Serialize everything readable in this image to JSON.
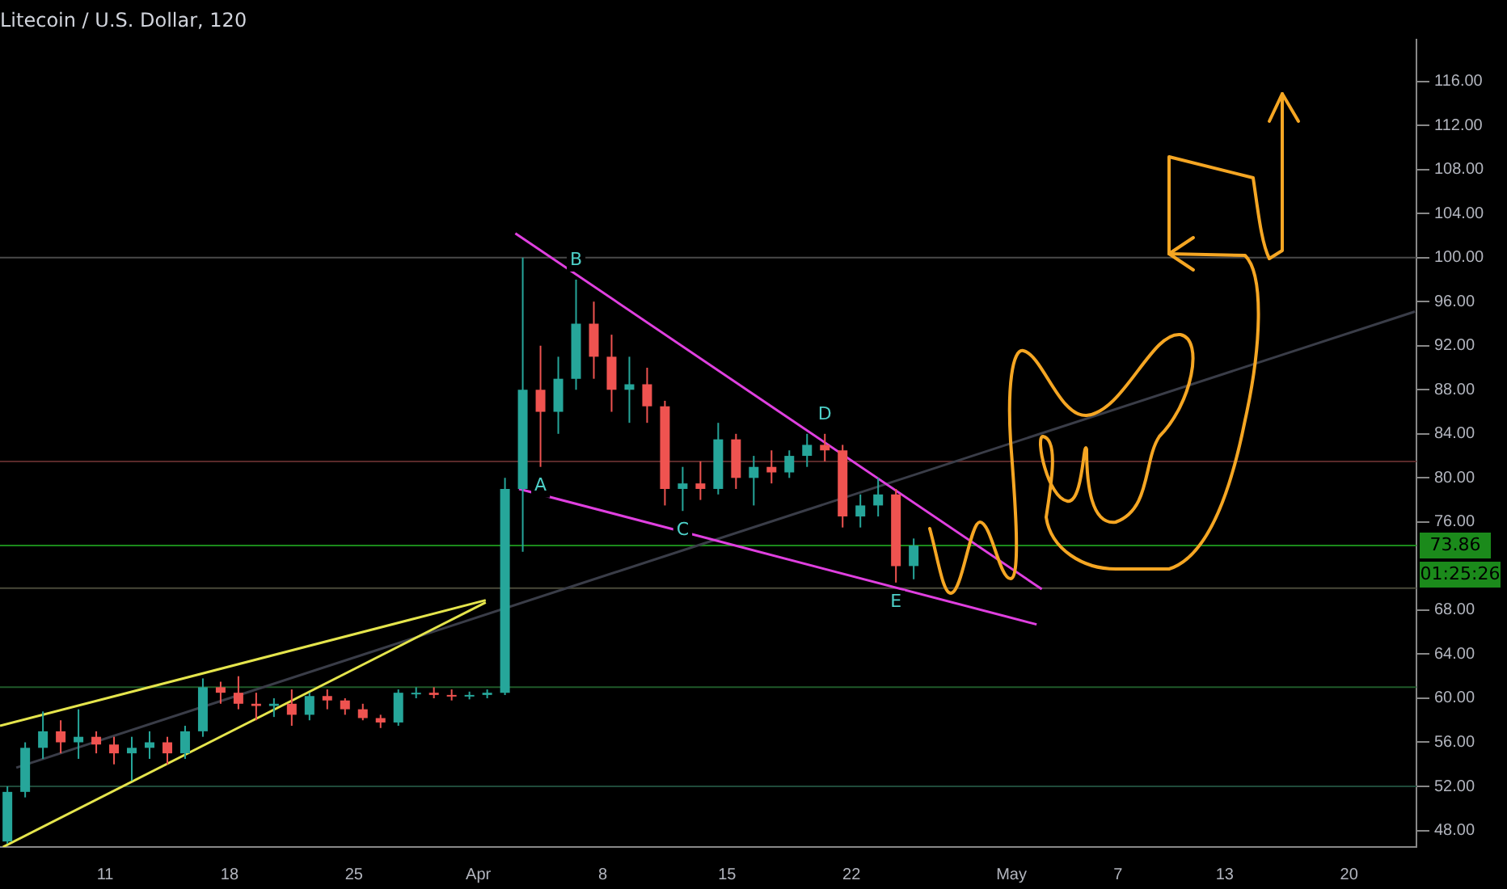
{
  "chart_data": {
    "type": "candlestick",
    "title": "Litecoin / U.S. Dollar, 120",
    "x": [
      "--03-05T12:00",
      "--03-06T12:00",
      "--03-07T12:00",
      "--03-08T12:00",
      "--03-09T12:00",
      "--03-10T12:00",
      "--03-11T12:00",
      "--03-12T12:00",
      "--03-13T12:00",
      "--03-14T12:00",
      "--03-15T12:00",
      "--03-16T12:00",
      "--03-17T12:00",
      "--03-18T12:00",
      "--03-19T12:00",
      "--03-20T12:00",
      "--03-21T12:00",
      "--03-22T12:00",
      "--03-23T12:00",
      "--03-24T12:00",
      "--03-25T12:00",
      "--03-26T12:00",
      "--03-27T12:00",
      "--03-28T12:00",
      "--03-29T12:00",
      "--03-30T12:00",
      "--03-31T12:00",
      "--04-01T12:00",
      "--04-02T12:00",
      "--04-03T12:00",
      "--04-04T12:00",
      "--04-05T12:00",
      "--04-06T12:00",
      "--04-07T12:00",
      "--04-08T12:00",
      "--04-09T12:00",
      "--04-10T12:00",
      "--04-11T12:00",
      "--04-12T12:00",
      "--04-13T12:00",
      "--04-14T12:00",
      "--04-15T12:00",
      "--04-16T12:00",
      "--04-17T12:00",
      "--04-18T12:00",
      "--04-19T12:00",
      "--04-20T12:00",
      "--04-21T12:00",
      "--04-22T12:00",
      "--04-23T12:00",
      "--04-24T12:00",
      "--04-25T12:00"
    ],
    "ohlc": [
      [
        47,
        52,
        46.8,
        51.5
      ],
      [
        51.5,
        56,
        51,
        55.5
      ],
      [
        55.5,
        58.8,
        54.5,
        57
      ],
      [
        57,
        58,
        55,
        56
      ],
      [
        56,
        59,
        54.5,
        56.5
      ],
      [
        56.5,
        57,
        55,
        55.8
      ],
      [
        55.8,
        56.5,
        54,
        55
      ],
      [
        55,
        56.5,
        52.5,
        55.5
      ],
      [
        55.5,
        57,
        54.5,
        56
      ],
      [
        56,
        56.5,
        54,
        55
      ],
      [
        55,
        57.5,
        54.5,
        57
      ],
      [
        57,
        61.8,
        56.5,
        61
      ],
      [
        61,
        61.5,
        59.5,
        60.5
      ],
      [
        60.5,
        62,
        59,
        59.5
      ],
      [
        59.5,
        60.5,
        58,
        59.3
      ],
      [
        59.3,
        60,
        58.3,
        59.5
      ],
      [
        59.5,
        60.8,
        57.5,
        58.5
      ],
      [
        58.5,
        60.5,
        58,
        60.2
      ],
      [
        60.2,
        60.8,
        59,
        59.8
      ],
      [
        59.8,
        60,
        58.5,
        59
      ],
      [
        59,
        59.5,
        58,
        58.2
      ],
      [
        58.2,
        58.5,
        57.3,
        57.8
      ],
      [
        57.8,
        60.8,
        57.5,
        60.5
      ],
      [
        60.5,
        61,
        60,
        60.5
      ],
      [
        60.5,
        61,
        60,
        60.3
      ],
      [
        60.3,
        60.8,
        59.8,
        60.2
      ],
      [
        60.2,
        60.6,
        59.9,
        60.3
      ],
      [
        60.3,
        60.8,
        60,
        60.5
      ],
      [
        60.5,
        80,
        60.3,
        79
      ],
      [
        79,
        100,
        73.3,
        88
      ],
      [
        88,
        92,
        81,
        86
      ],
      [
        86,
        91,
        84,
        89
      ],
      [
        89,
        98,
        88,
        94
      ],
      [
        94,
        96,
        89,
        91
      ],
      [
        91,
        93,
        86,
        88
      ],
      [
        88,
        91,
        85,
        88.5
      ],
      [
        88.5,
        90,
        85,
        86.5
      ],
      [
        86.5,
        87,
        77.5,
        79
      ],
      [
        79,
        81,
        77,
        79.5
      ],
      [
        79.5,
        81.5,
        78,
        79
      ],
      [
        79,
        85,
        78.5,
        83.5
      ],
      [
        83.5,
        84,
        79,
        80
      ],
      [
        80,
        82,
        77.5,
        81
      ],
      [
        81,
        82.5,
        79.5,
        80.5
      ],
      [
        80.5,
        82.5,
        80,
        82
      ],
      [
        82,
        84,
        81,
        83
      ],
      [
        83,
        84,
        81.5,
        82.5
      ],
      [
        82.5,
        83,
        75.5,
        76.5
      ],
      [
        76.5,
        78.5,
        75.5,
        77.5
      ],
      [
        77.5,
        80,
        76.5,
        78.5
      ],
      [
        78.5,
        79,
        70.5,
        72
      ],
      [
        72,
        74.5,
        70.8,
        73.86
      ]
    ],
    "colors": [
      "#26a69a",
      "#26a69a",
      "#26a69a",
      "#ef5350",
      "#26a69a",
      "#ef5350",
      "#ef5350",
      "#26a69a",
      "#26a69a",
      "#ef5350",
      "#26a69a",
      "#26a69a",
      "#ef5350",
      "#ef5350",
      "#ef5350",
      "#26a69a",
      "#ef5350",
      "#26a69a",
      "#ef5350",
      "#ef5350",
      "#ef5350",
      "#ef5350",
      "#26a69a",
      "#26a69a",
      "#ef5350",
      "#ef5350",
      "#26a69a",
      "#26a69a",
      "#26a69a",
      "#26a69a",
      "#ef5350",
      "#26a69a",
      "#26a69a",
      "#ef5350",
      "#ef5350",
      "#26a69a",
      "#ef5350",
      "#ef5350",
      "#26a69a",
      "#ef5350",
      "#26a69a",
      "#ef5350",
      "#26a69a",
      "#ef5350",
      "#26a69a",
      "#26a69a",
      "#ef5350",
      "#ef5350",
      "#26a69a",
      "#26a69a",
      "#ef5350",
      "#26a69a"
    ],
    "series": [
      {
        "type": "line",
        "color": "#e5e54c",
        "x": [
          "--03-05T02:00",
          "--04-01T10:00"
        ],
        "values": [
          57.5,
          68.9
        ]
      },
      {
        "type": "line",
        "color": "#e5e54c",
        "x": [
          "--03-05T06:00",
          "--04-01T10:00"
        ],
        "values": [
          46.5,
          68.7
        ]
      },
      {
        "type": "line",
        "color": "#e040e0",
        "x": [
          "--04-03T02:00",
          "--05-02T17:00"
        ],
        "values": [
          102.2,
          69.9
        ]
      },
      {
        "type": "line",
        "color": "#e040e0",
        "x": [
          "--04-03T07:00",
          "--05-02T10:00"
        ],
        "values": [
          79,
          66.7
        ]
      },
      {
        "type": "line",
        "color": "#3a3d48",
        "x": [
          "--03-06T00:00",
          "--05-23T17:00"
        ],
        "values": [
          53.7,
          95.1
        ]
      }
    ],
    "ref_lines": [
      {
        "axis": "y",
        "value": 100,
        "color": "#4a4a4a"
      },
      {
        "axis": "y",
        "value": 81.5,
        "color": "#5a2a2a"
      },
      {
        "axis": "y",
        "value": 73.86,
        "color": "#1b8a1b",
        "label": "73.86"
      },
      {
        "axis": "y",
        "value": 70,
        "color": "#4a4a3a"
      },
      {
        "axis": "y",
        "value": 61,
        "color": "#1f5a2a"
      },
      {
        "axis": "y",
        "value": 52,
        "color": "#1f4a3a"
      }
    ],
    "annotations": [
      {
        "text": "A",
        "x": "--04-04T12:00",
        "y": 81
      },
      {
        "text": "B",
        "x": "--04-06T12:00",
        "y": 98
      },
      {
        "text": "C",
        "x": "--04-12T12:00",
        "y": 77
      },
      {
        "text": "D",
        "x": "--04-20T12:00",
        "y": 84
      },
      {
        "text": "E",
        "x": "--04-24T12:00",
        "y": 70.5
      },
      "01:25:26"
    ],
    "xlim": [
      "--03-05T02:00",
      "--05-23T19:00"
    ],
    "xticks": [
      {
        "value": "--03-11",
        "label": "11"
      },
      {
        "value": "--03-18",
        "label": "18"
      },
      {
        "value": "--03-25",
        "label": "25"
      },
      {
        "value": "--04-01",
        "label": "Apr"
      },
      {
        "value": "--04-08",
        "label": "8"
      },
      {
        "value": "--04-15",
        "label": "15"
      },
      {
        "value": "--04-22",
        "label": "22"
      },
      {
        "value": "--05-01",
        "label": "May"
      },
      {
        "value": "--05-07",
        "label": "7"
      },
      {
        "value": "--05-13",
        "label": "13"
      },
      {
        "value": "--05-20",
        "label": "20"
      }
    ],
    "ylim": [
      46.5,
      119.8
    ],
    "yticks": [
      {
        "value": 48,
        "label": "48.00"
      },
      {
        "value": 52,
        "label": "52.00"
      },
      {
        "value": 56,
        "label": "56.00"
      },
      {
        "value": 60,
        "label": "60.00"
      },
      {
        "value": 64,
        "label": "64.00"
      },
      {
        "value": 68,
        "label": "68.00"
      },
      {
        "value": 76,
        "label": "76.00"
      },
      {
        "value": 80,
        "label": "80.00"
      },
      {
        "value": 84,
        "label": "84.00"
      },
      {
        "value": 88,
        "label": "88.00"
      },
      {
        "value": 92,
        "label": "92.00"
      },
      {
        "value": 96,
        "label": "96.00"
      },
      {
        "value": 100,
        "label": "100.00"
      },
      {
        "value": 104,
        "label": "104.00"
      },
      {
        "value": 108,
        "label": "108.00"
      },
      {
        "value": 112,
        "label": "112.00"
      },
      {
        "value": 116,
        "label": "116.00"
      }
    ]
  }
}
